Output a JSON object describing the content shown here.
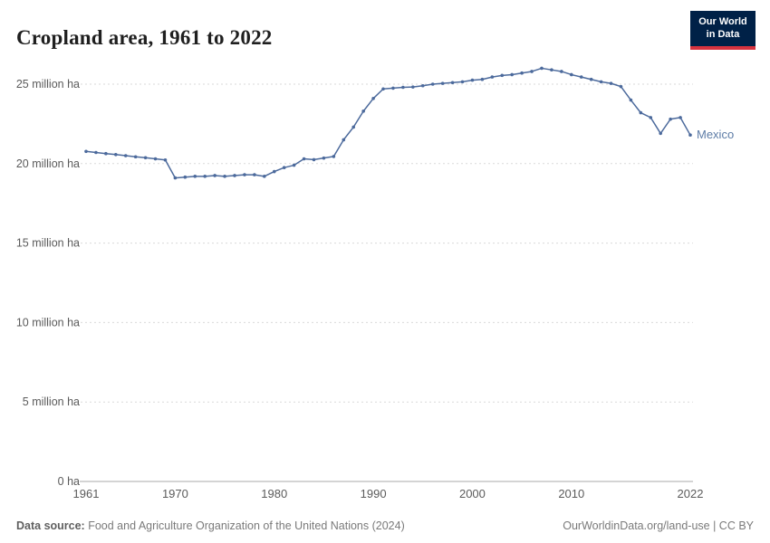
{
  "header": {
    "title": "Cropland area, 1961 to 2022"
  },
  "logo": {
    "line1": "Our World",
    "line2": "in Data",
    "bg_color": "#002147",
    "accent_color": "#d7333f"
  },
  "footer": {
    "source_label": "Data source:",
    "source_text": "Food and Agriculture Organization of the United Nations (2024)",
    "right_text": "OurWorldinData.org/land-use | CC BY"
  },
  "chart_data": {
    "type": "line",
    "title": "Cropland area, 1961 to 2022",
    "xlabel": "",
    "ylabel": "",
    "unit": "million ha",
    "grid": "dashed horizontal",
    "legend_position": "end-of-line label",
    "ylim": [
      0,
      27
    ],
    "yticks": [
      0,
      5,
      10,
      15,
      20,
      25
    ],
    "ytick_labels": [
      "0 ha",
      "5 million ha",
      "10 million ha",
      "15 million ha",
      "20 million ha",
      "25 million ha"
    ],
    "xticks": [
      1961,
      1970,
      1980,
      1990,
      2000,
      2010,
      2022
    ],
    "x": [
      1961,
      1962,
      1963,
      1964,
      1965,
      1966,
      1967,
      1968,
      1969,
      1970,
      1971,
      1972,
      1973,
      1974,
      1975,
      1976,
      1977,
      1978,
      1979,
      1980,
      1981,
      1982,
      1983,
      1984,
      1985,
      1986,
      1987,
      1988,
      1989,
      1990,
      1991,
      1992,
      1993,
      1994,
      1995,
      1996,
      1997,
      1998,
      1999,
      2000,
      2001,
      2002,
      2003,
      2004,
      2005,
      2006,
      2007,
      2008,
      2009,
      2010,
      2011,
      2012,
      2013,
      2014,
      2015,
      2016,
      2017,
      2018,
      2019,
      2020,
      2021,
      2022
    ],
    "series": [
      {
        "name": "Mexico",
        "color": "#4c6a9c",
        "label_color": "#5d7ca6",
        "values": [
          20.77,
          20.7,
          20.63,
          20.57,
          20.5,
          20.43,
          20.37,
          20.3,
          20.23,
          19.1,
          19.15,
          19.2,
          19.2,
          19.25,
          19.2,
          19.25,
          19.3,
          19.3,
          19.2,
          19.5,
          19.75,
          19.9,
          20.3,
          20.25,
          20.35,
          20.45,
          21.5,
          22.3,
          23.3,
          24.1,
          24.7,
          24.75,
          24.8,
          24.82,
          24.9,
          25.0,
          25.05,
          25.1,
          25.15,
          25.25,
          25.3,
          25.45,
          25.55,
          25.6,
          25.7,
          25.8,
          26.0,
          25.9,
          25.8,
          25.6,
          25.45,
          25.3,
          25.15,
          25.05,
          24.85,
          24.0,
          23.2,
          22.9,
          21.9,
          22.8,
          22.9,
          21.8
        ]
      }
    ]
  }
}
